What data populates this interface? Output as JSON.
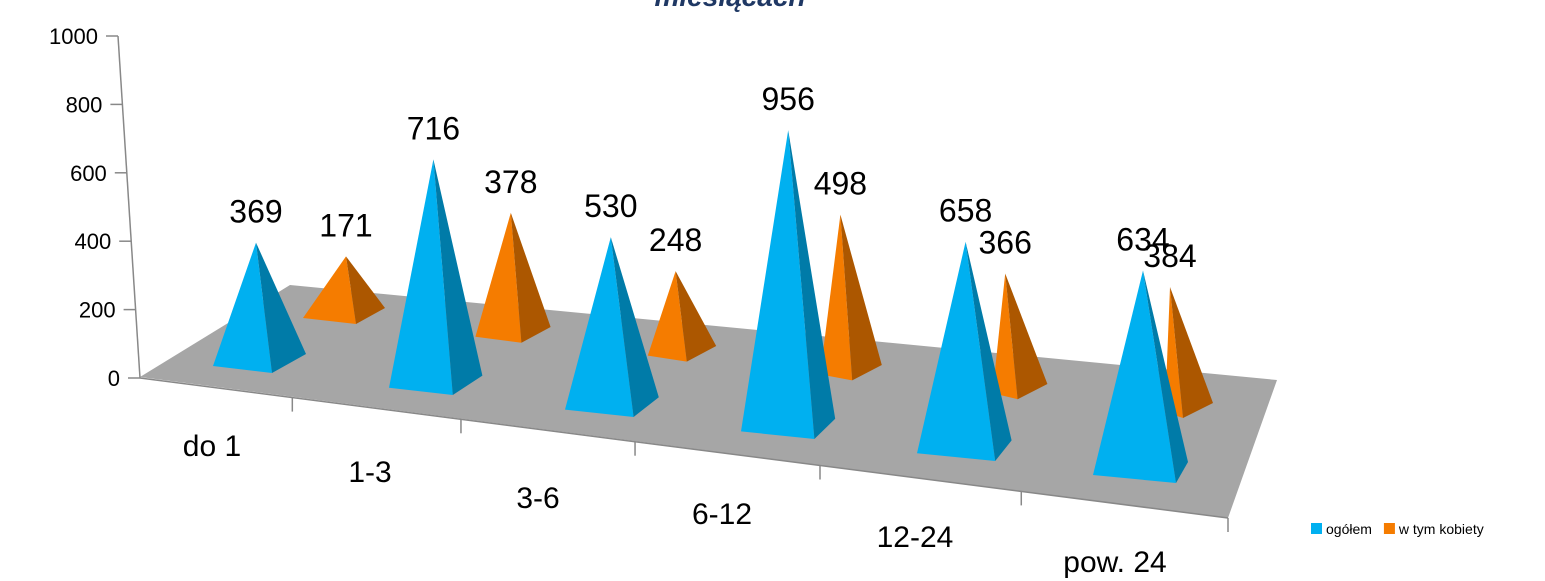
{
  "chart_data": {
    "type": "bar",
    "shape": "3d-pyramid",
    "title": "miesiącach",
    "categories": [
      "do 1",
      "1-3",
      "3-6",
      "6-12",
      "12-24",
      "pow. 24"
    ],
    "series": [
      {
        "name": "ogółem",
        "values": [
          369,
          716,
          530,
          956,
          658,
          634
        ],
        "color": "#00b0f0"
      },
      {
        "name": "w tym kobiety",
        "values": [
          171,
          378,
          248,
          498,
          366,
          384
        ],
        "color": "#f57c00"
      }
    ],
    "y_ticks": [
      "0",
      "200",
      "400",
      "600",
      "800",
      "1000"
    ],
    "ylim": [
      0,
      1000
    ],
    "grid": false,
    "legend": "bottom-right",
    "floor_color": "#a6a6a6"
  }
}
